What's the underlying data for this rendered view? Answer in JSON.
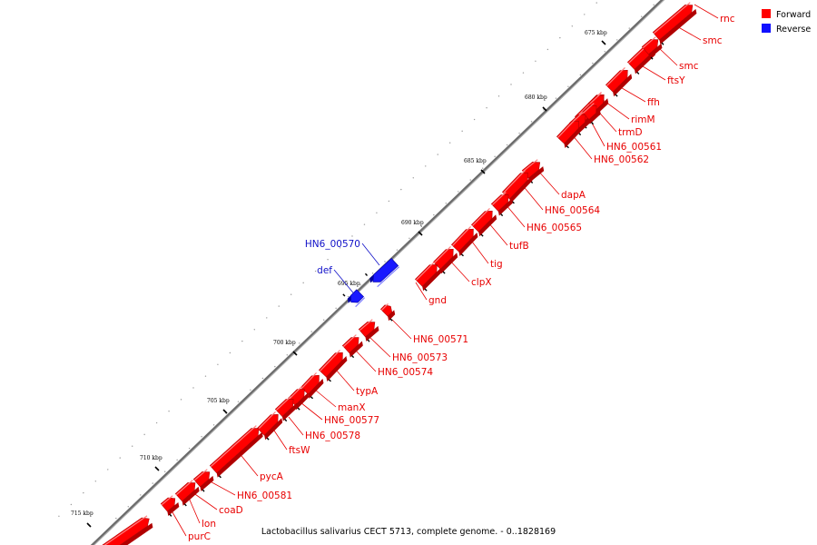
{
  "caption": "Lactobacillus salivarius CECT 5713, complete genome. - 0..1828169",
  "legend": [
    {
      "label": "Forward",
      "color": "#ff0000"
    },
    {
      "label": "Reverse",
      "color": "#1010ff"
    }
  ],
  "axis": {
    "unit": "kbp",
    "ticks": [
      {
        "kbp": 675,
        "label": "675 kbp"
      },
      {
        "kbp": 680,
        "label": "680 kbp"
      },
      {
        "kbp": 685,
        "label": "685 kbp"
      },
      {
        "kbp": 690,
        "label": "690 kbp"
      },
      {
        "kbp": 695,
        "label": "695 kbp"
      },
      {
        "kbp": 700,
        "label": "700 kbp"
      },
      {
        "kbp": 705,
        "label": "705 kbp"
      },
      {
        "kbp": 710,
        "label": "710 kbp"
      },
      {
        "kbp": 715,
        "label": "715 kbp"
      }
    ]
  },
  "genes": [
    {
      "name": "rnc",
      "strand": "forward"
    },
    {
      "name": "smc",
      "strand": "forward"
    },
    {
      "name": "smc",
      "strand": "forward"
    },
    {
      "name": "ftsY",
      "strand": "forward"
    },
    {
      "name": "ffh",
      "strand": "forward"
    },
    {
      "name": "rimM",
      "strand": "forward"
    },
    {
      "name": "trmD",
      "strand": "forward"
    },
    {
      "name": "HN6_00561",
      "strand": "forward"
    },
    {
      "name": "HN6_00562",
      "strand": "forward"
    },
    {
      "name": "dapA",
      "strand": "forward"
    },
    {
      "name": "HN6_00564",
      "strand": "forward"
    },
    {
      "name": "HN6_00565",
      "strand": "forward"
    },
    {
      "name": "tufB",
      "strand": "forward"
    },
    {
      "name": "tig",
      "strand": "forward"
    },
    {
      "name": "clpX",
      "strand": "forward"
    },
    {
      "name": "gnd",
      "strand": "forward"
    },
    {
      "name": "HN6_00570",
      "strand": "reverse"
    },
    {
      "name": "def",
      "strand": "reverse"
    },
    {
      "name": "HN6_00571",
      "strand": "forward"
    },
    {
      "name": "HN6_00573",
      "strand": "forward"
    },
    {
      "name": "HN6_00574",
      "strand": "forward"
    },
    {
      "name": "typA",
      "strand": "forward"
    },
    {
      "name": "manX",
      "strand": "forward"
    },
    {
      "name": "HN6_00577",
      "strand": "forward"
    },
    {
      "name": "HN6_00578",
      "strand": "forward"
    },
    {
      "name": "ftsW",
      "strand": "forward"
    },
    {
      "name": "pycA",
      "strand": "forward"
    },
    {
      "name": "HN6_00581",
      "strand": "forward"
    },
    {
      "name": "coaD",
      "strand": "forward"
    },
    {
      "name": "lon",
      "strand": "forward"
    },
    {
      "name": "purC",
      "strand": "forward"
    }
  ]
}
